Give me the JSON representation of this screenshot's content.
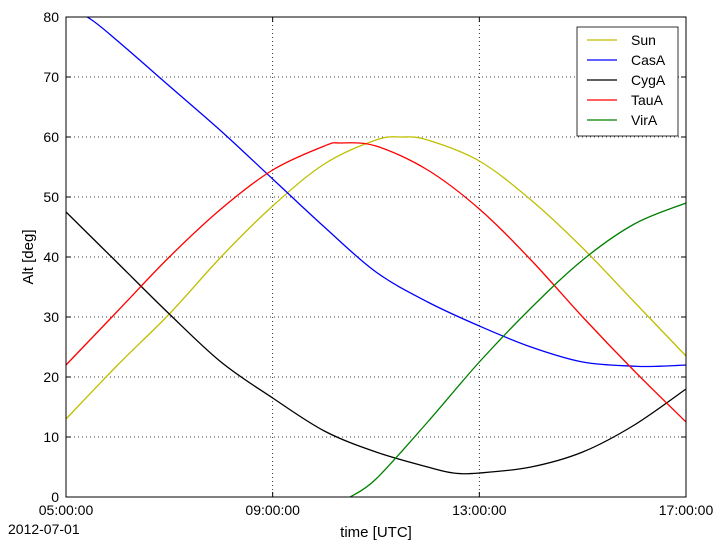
{
  "chart_data": {
    "type": "line",
    "xlabel": "time [UTC]",
    "ylabel": "Alt [deg]",
    "date_label": "2012-07-01",
    "xlim_hours": [
      5,
      17
    ],
    "ylim": [
      0,
      80
    ],
    "x_ticks": [
      {
        "hour": 5,
        "label": "05:00:00"
      },
      {
        "hour": 9,
        "label": "09:00:00"
      },
      {
        "hour": 13,
        "label": "13:00:00"
      },
      {
        "hour": 17,
        "label": "17:00:00"
      }
    ],
    "y_ticks": [
      0,
      10,
      20,
      30,
      40,
      50,
      60,
      70,
      80
    ],
    "grid": true,
    "legend_position": "top-right",
    "series": [
      {
        "name": "Sun",
        "color": "#bfbf00",
        "x": [
          5,
          6,
          7,
          8,
          9,
          10,
          11,
          11.5,
          12,
          13,
          14,
          15,
          16,
          17
        ],
        "y": [
          13,
          22,
          30.5,
          40,
          48.5,
          55.5,
          59.5,
          60,
          59.5,
          56,
          49.5,
          41.5,
          32.5,
          23.5
        ]
      },
      {
        "name": "CasA",
        "color": "#0000ff",
        "x": [
          5,
          5.5,
          6,
          7,
          8,
          9,
          10,
          11,
          12,
          13,
          14,
          15,
          16,
          16.5,
          17
        ],
        "y": [
          82,
          79.5,
          76,
          68.5,
          61,
          53,
          45,
          37.5,
          32.5,
          28.5,
          25,
          22.5,
          21.8,
          21.8,
          22
        ]
      },
      {
        "name": "CygA",
        "color": "#000000",
        "x": [
          5,
          6,
          7,
          8,
          9,
          10,
          11,
          12,
          12.5,
          13,
          14,
          15,
          16,
          17
        ],
        "y": [
          47.5,
          39,
          30.5,
          22.5,
          16.5,
          11,
          7.5,
          5,
          4,
          4,
          5,
          7.5,
          12,
          18
        ]
      },
      {
        "name": "TauA",
        "color": "#ff0000",
        "x": [
          5,
          6,
          7,
          8,
          9,
          10,
          10.3,
          11,
          12,
          13,
          14,
          15,
          16,
          17
        ],
        "y": [
          22,
          31,
          40,
          48,
          54.5,
          58.5,
          59,
          58.5,
          54.5,
          48,
          39.5,
          30,
          21,
          12.5
        ]
      },
      {
        "name": "VirA",
        "color": "#008000",
        "x": [
          10.5,
          11,
          12,
          13,
          14,
          15,
          16,
          17
        ],
        "y": [
          0,
          3,
          12.5,
          22.5,
          31.5,
          39.5,
          45.5,
          49
        ]
      }
    ]
  }
}
